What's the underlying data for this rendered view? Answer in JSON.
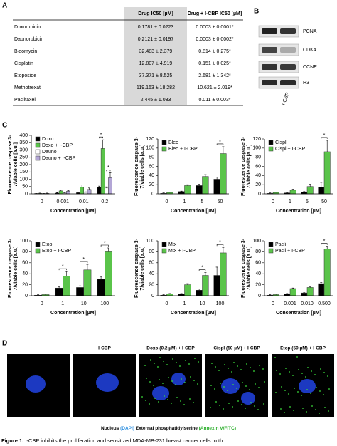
{
  "panel_labels": [
    "A",
    "B",
    "C",
    "D"
  ],
  "table": {
    "columns": [
      "Drug IC50 [µM]",
      "Drug + I-CBP IC50 [µM]"
    ],
    "rows": [
      [
        "Doxorubicin",
        "0.1781 ± 0.0223",
        "0.0003 ± 0.0001*"
      ],
      [
        "Daunorubicin",
        "0.2121 ± 0.0197",
        "0.0003 ± 0.0002*"
      ],
      [
        "Bleomycin",
        "32.483 ± 2.379",
        "0.814 ± 0.275*"
      ],
      [
        "Cisplatin",
        "12.807 ± 4.919",
        "0.151 ± 0.025*"
      ],
      [
        "Etoposide",
        "37.371 ± 8.525",
        "2.681 ± 1.342*"
      ],
      [
        "Methotrexat",
        "119.163 ± 18.282",
        "10.621 ± 2.019*"
      ],
      [
        "Paclitaxel",
        "2.445 ± 1.033",
        "0.011 ± 0.003*"
      ]
    ]
  },
  "blot": {
    "proteins": [
      "PCNA",
      "CDK4",
      "CCNE",
      "H3"
    ],
    "lanes": [
      "-",
      "I-CBP"
    ]
  },
  "chart_data": [
    {
      "type": "bar",
      "ylabel_lines": [
        "Fluorescence caspase 3-",
        "7/viable cells [a.u.]"
      ],
      "xlabel": "Concentration [µM]",
      "categories": [
        "0",
        "0.001",
        "0.01",
        "0.2"
      ],
      "ylim": [
        0,
        400
      ],
      "yticks": [
        0,
        50,
        100,
        150,
        200,
        250,
        300,
        350,
        400
      ],
      "series": [
        {
          "name": "Doxo",
          "color": "#000000",
          "values": [
            2,
            5,
            8,
            45
          ],
          "errors": [
            1,
            3,
            5,
            8
          ]
        },
        {
          "name": "Doxo + I-CBP",
          "color": "#5ac44a",
          "values": [
            3,
            20,
            45,
            310
          ],
          "errors": [
            2,
            5,
            15,
            60
          ]
        },
        {
          "name": "Dauno",
          "color": "#ffffff",
          "values": [
            2,
            5,
            10,
            40
          ],
          "errors": [
            1,
            2,
            4,
            8
          ]
        },
        {
          "name": "Dauno + I-CBP",
          "color": "#b3a6d6",
          "values": [
            3,
            18,
            30,
            110
          ],
          "errors": [
            2,
            5,
            10,
            35
          ]
        }
      ],
      "significance": [
        {
          "label": "*",
          "at": "0.2",
          "pair": [
            "Doxo",
            "Doxo + I-CBP"
          ]
        },
        {
          "label": "*",
          "at": "0.2",
          "pair": [
            "Dauno",
            "Dauno + I-CBP"
          ]
        }
      ]
    },
    {
      "type": "bar",
      "ylabel_lines": [
        "Fluorescence caspase 3-",
        "7/viable cells [a.u.]"
      ],
      "xlabel": "Concentration [µM]",
      "categories": [
        "0",
        "1",
        "5",
        "50"
      ],
      "ylim": [
        0,
        120
      ],
      "yticks": [
        0,
        20,
        40,
        60,
        80,
        100,
        120
      ],
      "series": [
        {
          "name": "Bleo",
          "color": "#000000",
          "values": [
            1,
            5,
            18,
            32
          ],
          "errors": [
            1,
            1,
            3,
            5
          ]
        },
        {
          "name": "Bleo + I-CBP",
          "color": "#5ac44a",
          "values": [
            3,
            18,
            38,
            88
          ],
          "errors": [
            1,
            2,
            4,
            15
          ]
        }
      ],
      "significance": [
        {
          "label": "*",
          "at": "50",
          "pair": [
            "Bleo",
            "Bleo + I-CBP"
          ]
        }
      ]
    },
    {
      "type": "bar",
      "ylabel_lines": [
        "Fluorescence caspase 3-",
        "7/viable cells [a.u.]"
      ],
      "xlabel": "Concentration [µM]",
      "categories": [
        "0",
        "1",
        "5",
        "50"
      ],
      "ylim": [
        0,
        120
      ],
      "yticks": [
        0,
        20,
        40,
        60,
        80,
        100,
        120
      ],
      "series": [
        {
          "name": "Cispl",
          "color": "#000000",
          "values": [
            1,
            2,
            4,
            15
          ],
          "errors": [
            1,
            1,
            1,
            10
          ]
        },
        {
          "name": "Cispl + I-CBP",
          "color": "#5ac44a",
          "values": [
            3,
            8,
            16,
            92
          ],
          "errors": [
            1,
            2,
            5,
            25
          ]
        }
      ],
      "significance": [
        {
          "label": "*",
          "at": "50",
          "pair": [
            "Cispl",
            "Cispl + I-CBP"
          ]
        }
      ]
    },
    {
      "type": "bar",
      "ylabel_lines": [
        "Fluorescence caspase 3-",
        "7/viable cells [a.u.]"
      ],
      "xlabel": "Concentration [µM]",
      "categories": [
        "0",
        "1",
        "10",
        "100"
      ],
      "ylim": [
        0,
        100
      ],
      "yticks": [
        0,
        20,
        40,
        60,
        80,
        100
      ],
      "series": [
        {
          "name": "Etop",
          "color": "#000000",
          "values": [
            1,
            14,
            15,
            30
          ],
          "errors": [
            1,
            2,
            3,
            5
          ]
        },
        {
          "name": "Etop + I-CBP",
          "color": "#5ac44a",
          "values": [
            2,
            36,
            47,
            80
          ],
          "errors": [
            1,
            8,
            10,
            7
          ]
        }
      ],
      "significance": [
        {
          "label": "*",
          "at": "1",
          "pair": [
            "Etop",
            "Etop + I-CBP"
          ]
        },
        {
          "label": "*",
          "at": "10",
          "pair": [
            "Etop",
            "Etop + I-CBP"
          ]
        },
        {
          "label": "*",
          "at": "100",
          "pair": [
            "Etop",
            "Etop + I-CBP"
          ]
        }
      ]
    },
    {
      "type": "bar",
      "ylabel_lines": [
        "Fluorescence caspase 3-",
        "7/viable cells [a.u.]"
      ],
      "xlabel": "Concentration [µM]",
      "categories": [
        "0",
        "1",
        "10",
        "100"
      ],
      "ylim": [
        0,
        100
      ],
      "yticks": [
        0,
        20,
        40,
        60,
        80,
        100
      ],
      "series": [
        {
          "name": "Mtx",
          "color": "#000000",
          "values": [
            1,
            3,
            10,
            37
          ],
          "errors": [
            1,
            1,
            2,
            15
          ]
        },
        {
          "name": "Mtx + I-CBP",
          "color": "#5ac44a",
          "values": [
            3,
            20,
            37,
            78
          ],
          "errors": [
            1,
            2,
            5,
            10
          ]
        }
      ],
      "significance": [
        {
          "label": "*",
          "at": "10",
          "pair": [
            "Mtx",
            "Mtx + I-CBP"
          ]
        },
        {
          "label": "*",
          "at": "100",
          "pair": [
            "Mtx",
            "Mtx + I-CBP"
          ]
        }
      ]
    },
    {
      "type": "bar",
      "ylabel_lines": [
        "Fluorescence caspase 3-",
        "7/viable cells [a.u.]"
      ],
      "xlabel": "Concentration [µM]",
      "categories": [
        "0",
        "0.001",
        "0.010",
        "0.500"
      ],
      "ylim": [
        0,
        100
      ],
      "yticks": [
        0,
        20,
        40,
        60,
        80,
        100
      ],
      "series": [
        {
          "name": "Pacli",
          "color": "#000000",
          "values": [
            1,
            3,
            5,
            22
          ],
          "errors": [
            1,
            1,
            1,
            2
          ]
        },
        {
          "name": "Pacli + I-CBP",
          "color": "#5ac44a",
          "values": [
            2,
            13,
            15,
            85
          ],
          "errors": [
            1,
            1,
            1,
            5
          ]
        }
      ],
      "significance": [
        {
          "label": "*",
          "at": "0.500",
          "pair": [
            "Pacli",
            "Pacli + I-CBP"
          ]
        }
      ]
    }
  ],
  "microscopy": {
    "conditions": [
      "-",
      "I-CBP",
      "Doxo (0.2 µM) + I-CBP",
      "Cispl (50 µM) + I-CBP",
      "Etop (50 µM) + I-CBP"
    ],
    "legend": [
      {
        "text": "Nucleus ",
        "color": "#000000"
      },
      {
        "text": "(DAPI)",
        "color": "#2a8ee0"
      },
      {
        "text": " External phosphatidylserine ",
        "color": "#000000"
      },
      {
        "text": "(Annexin V/FITC)",
        "color": "#2fb02f"
      }
    ]
  },
  "caption": {
    "lead": "Figure 1.",
    "text": " I-CBP inhibits the proliferation and sensitized MDA-MB-231 breast cancer cells to th"
  }
}
